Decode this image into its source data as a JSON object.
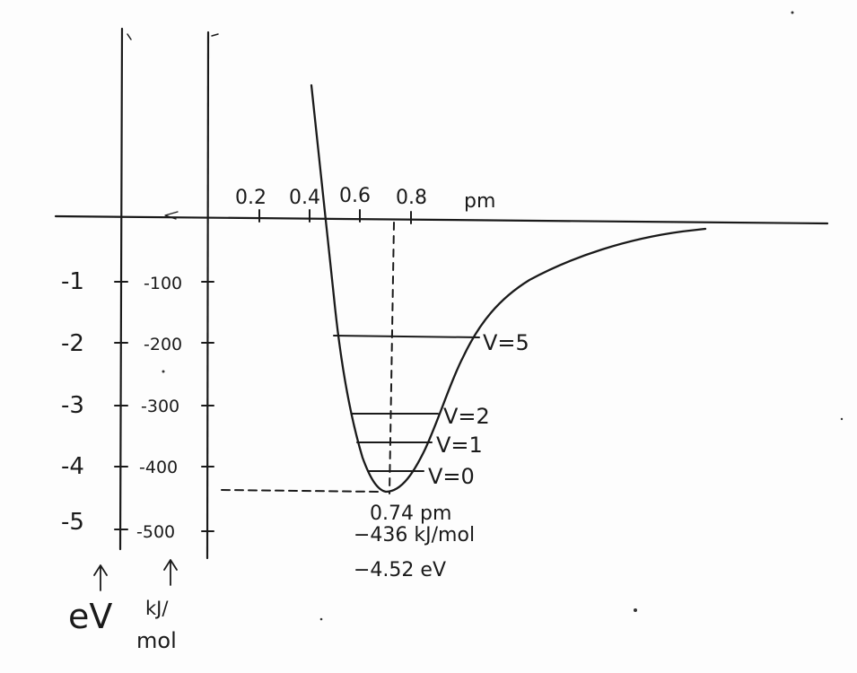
{
  "x_axis": {
    "ticks": [
      "0.2",
      "0.4",
      "0.6",
      "0.8"
    ],
    "unit": "pm"
  },
  "ev_axis": {
    "ticks": [
      "-1",
      "-2",
      "-3",
      "-4",
      "-5"
    ],
    "unit": "eV"
  },
  "kj_axis": {
    "ticks": [
      "-100",
      "-200",
      "-300",
      "-400",
      "-500"
    ],
    "unit_line1": "kJ/",
    "unit_line2": "mol"
  },
  "levels": [
    "V=5",
    "V=2",
    "V=1",
    "V=0"
  ],
  "minimum": {
    "distance": "0.74 pm",
    "energy_kj": "−436 kJ/mol",
    "energy_ev": "−4.52 eV"
  },
  "chart_data": {
    "type": "line",
    "xlabel": "pm",
    "x_ticks": [
      0.2,
      0.4,
      0.6,
      0.8
    ],
    "y_axes": [
      {
        "unit": "eV",
        "ticks": [
          -1,
          -2,
          -3,
          -4,
          -5
        ]
      },
      {
        "unit": "kJ/mol",
        "ticks": [
          -100,
          -200,
          -300,
          -400,
          -500
        ]
      }
    ],
    "series": [
      {
        "x": [
          0.22,
          0.32,
          0.4,
          0.46,
          0.52,
          0.58,
          0.64,
          0.74,
          0.86,
          0.95,
          1.05,
          1.2,
          1.4,
          1.6,
          1.8,
          1.96
        ],
        "y": [
          220,
          10,
          -200,
          -370,
          -410,
          -425,
          -432,
          -436,
          -380,
          -300,
          -220,
          -150,
          -95,
          -60,
          -30,
          -20
        ]
      }
    ],
    "vibrational_levels": [
      {
        "label": "V=5",
        "energy_kj": -188
      },
      {
        "label": "V=2",
        "energy_kj": -316
      },
      {
        "label": "V=1",
        "energy_kj": -360
      },
      {
        "label": "V=0",
        "energy_kj": -404
      }
    ],
    "minimum": {
      "x": 0.74,
      "energy_kj": -436,
      "energy_ev": -4.52
    }
  }
}
